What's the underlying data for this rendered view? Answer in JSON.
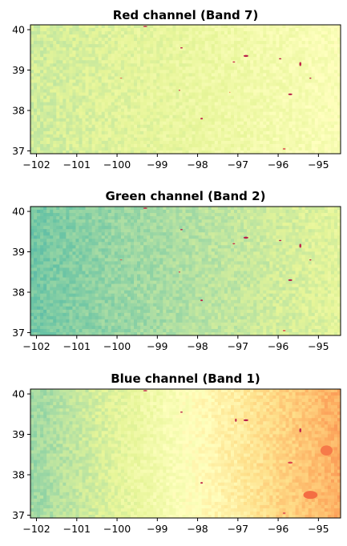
{
  "chart_data": [
    {
      "type": "heatmap",
      "title": "Red channel (Band 7)",
      "colormap": "Spectral",
      "xlim": [
        -102.15,
        -94.45
      ],
      "ylim": [
        36.93,
        40.12
      ],
      "xticks": [
        -102,
        -101,
        -100,
        -99,
        -98,
        -97,
        -96,
        -95
      ],
      "yticks": [
        37,
        38,
        39,
        40
      ],
      "base": {
        "west": 0.64,
        "east": 0.52
      },
      "features": [
        {
          "x": -96.8,
          "y": 39.35,
          "rx": 0.12,
          "ry": 0.05,
          "v": 0.05
        },
        {
          "x": -97.1,
          "y": 39.2,
          "rx": 0.06,
          "ry": 0.03,
          "v": 0.08
        },
        {
          "x": -95.95,
          "y": 39.28,
          "rx": 0.06,
          "ry": 0.03,
          "v": 0.05
        },
        {
          "x": -95.45,
          "y": 39.15,
          "rx": 0.05,
          "ry": 0.1,
          "v": 0.06
        },
        {
          "x": -95.2,
          "y": 38.8,
          "rx": 0.05,
          "ry": 0.03,
          "v": 0.05
        },
        {
          "x": -95.7,
          "y": 38.4,
          "rx": 0.1,
          "ry": 0.04,
          "v": 0.04
        },
        {
          "x": -97.9,
          "y": 37.8,
          "rx": 0.06,
          "ry": 0.04,
          "v": 0.06
        },
        {
          "x": -98.45,
          "y": 38.5,
          "rx": 0.04,
          "ry": 0.03,
          "v": 0.1
        },
        {
          "x": -99.3,
          "y": 40.08,
          "rx": 0.1,
          "ry": 0.03,
          "v": 0.05
        },
        {
          "x": -98.4,
          "y": 39.55,
          "rx": 0.06,
          "ry": 0.03,
          "v": 0.05
        },
        {
          "x": -95.85,
          "y": 37.05,
          "rx": 0.07,
          "ry": 0.03,
          "v": 0.12
        },
        {
          "x": -97.2,
          "y": 38.45,
          "rx": 0.03,
          "ry": 0.02,
          "v": 0.2
        },
        {
          "x": -99.9,
          "y": 38.8,
          "rx": 0.06,
          "ry": 0.02,
          "v": 0.15
        }
      ]
    },
    {
      "type": "heatmap",
      "title": "Green channel (Band 2)",
      "colormap": "Spectral",
      "xlim": [
        -102.15,
        -94.45
      ],
      "ylim": [
        36.93,
        40.12
      ],
      "xticks": [
        -102,
        -101,
        -100,
        -99,
        -98,
        -97,
        -96,
        -95
      ],
      "yticks": [
        37,
        38,
        39,
        40
      ],
      "base": {
        "west": 0.78,
        "east": 0.6
      },
      "features": [
        {
          "x": -96.8,
          "y": 39.35,
          "rx": 0.12,
          "ry": 0.05,
          "v": 0.05
        },
        {
          "x": -97.1,
          "y": 39.2,
          "rx": 0.06,
          "ry": 0.03,
          "v": 0.08
        },
        {
          "x": -95.95,
          "y": 39.28,
          "rx": 0.06,
          "ry": 0.03,
          "v": 0.05
        },
        {
          "x": -95.45,
          "y": 39.15,
          "rx": 0.05,
          "ry": 0.1,
          "v": 0.06
        },
        {
          "x": -95.2,
          "y": 38.8,
          "rx": 0.05,
          "ry": 0.03,
          "v": 0.05
        },
        {
          "x": -95.7,
          "y": 38.3,
          "rx": 0.1,
          "ry": 0.04,
          "v": 0.04
        },
        {
          "x": -97.9,
          "y": 37.8,
          "rx": 0.06,
          "ry": 0.04,
          "v": 0.06
        },
        {
          "x": -98.45,
          "y": 38.5,
          "rx": 0.04,
          "ry": 0.03,
          "v": 0.1
        },
        {
          "x": -99.3,
          "y": 40.08,
          "rx": 0.1,
          "ry": 0.03,
          "v": 0.05
        },
        {
          "x": -98.4,
          "y": 39.55,
          "rx": 0.06,
          "ry": 0.03,
          "v": 0.05
        },
        {
          "x": -95.85,
          "y": 37.05,
          "rx": 0.07,
          "ry": 0.03,
          "v": 0.12
        },
        {
          "x": -99.9,
          "y": 38.8,
          "rx": 0.06,
          "ry": 0.02,
          "v": 0.15
        }
      ]
    },
    {
      "type": "heatmap",
      "title": "Blue channel (Band 1)",
      "colormap": "Spectral",
      "xlim": [
        -102.15,
        -94.45
      ],
      "ylim": [
        36.93,
        40.12
      ],
      "xticks": [
        -102,
        -101,
        -100,
        -99,
        -98,
        -97,
        -96,
        -95
      ],
      "yticks": [
        37,
        38,
        39,
        40
      ],
      "base": {
        "west": 0.72,
        "east": 0.3
      },
      "features": [
        {
          "x": -96.8,
          "y": 39.35,
          "rx": 0.12,
          "ry": 0.05,
          "v": 0.05
        },
        {
          "x": -95.45,
          "y": 39.1,
          "rx": 0.05,
          "ry": 0.1,
          "v": 0.06
        },
        {
          "x": -95.7,
          "y": 38.3,
          "rx": 0.12,
          "ry": 0.05,
          "v": 0.12
        },
        {
          "x": -95.2,
          "y": 37.5,
          "rx": 0.35,
          "ry": 0.2,
          "v": 0.2
        },
        {
          "x": -94.8,
          "y": 38.6,
          "rx": 0.3,
          "ry": 0.25,
          "v": 0.22
        },
        {
          "x": -97.9,
          "y": 37.8,
          "rx": 0.06,
          "ry": 0.04,
          "v": 0.06
        },
        {
          "x": -99.3,
          "y": 40.08,
          "rx": 0.1,
          "ry": 0.03,
          "v": 0.05
        },
        {
          "x": -98.4,
          "y": 39.55,
          "rx": 0.06,
          "ry": 0.03,
          "v": 0.05
        },
        {
          "x": -97.05,
          "y": 39.35,
          "rx": 0.04,
          "ry": 0.08,
          "v": 0.05
        },
        {
          "x": -95.85,
          "y": 37.05,
          "rx": 0.07,
          "ry": 0.03,
          "v": 0.12
        }
      ]
    }
  ]
}
